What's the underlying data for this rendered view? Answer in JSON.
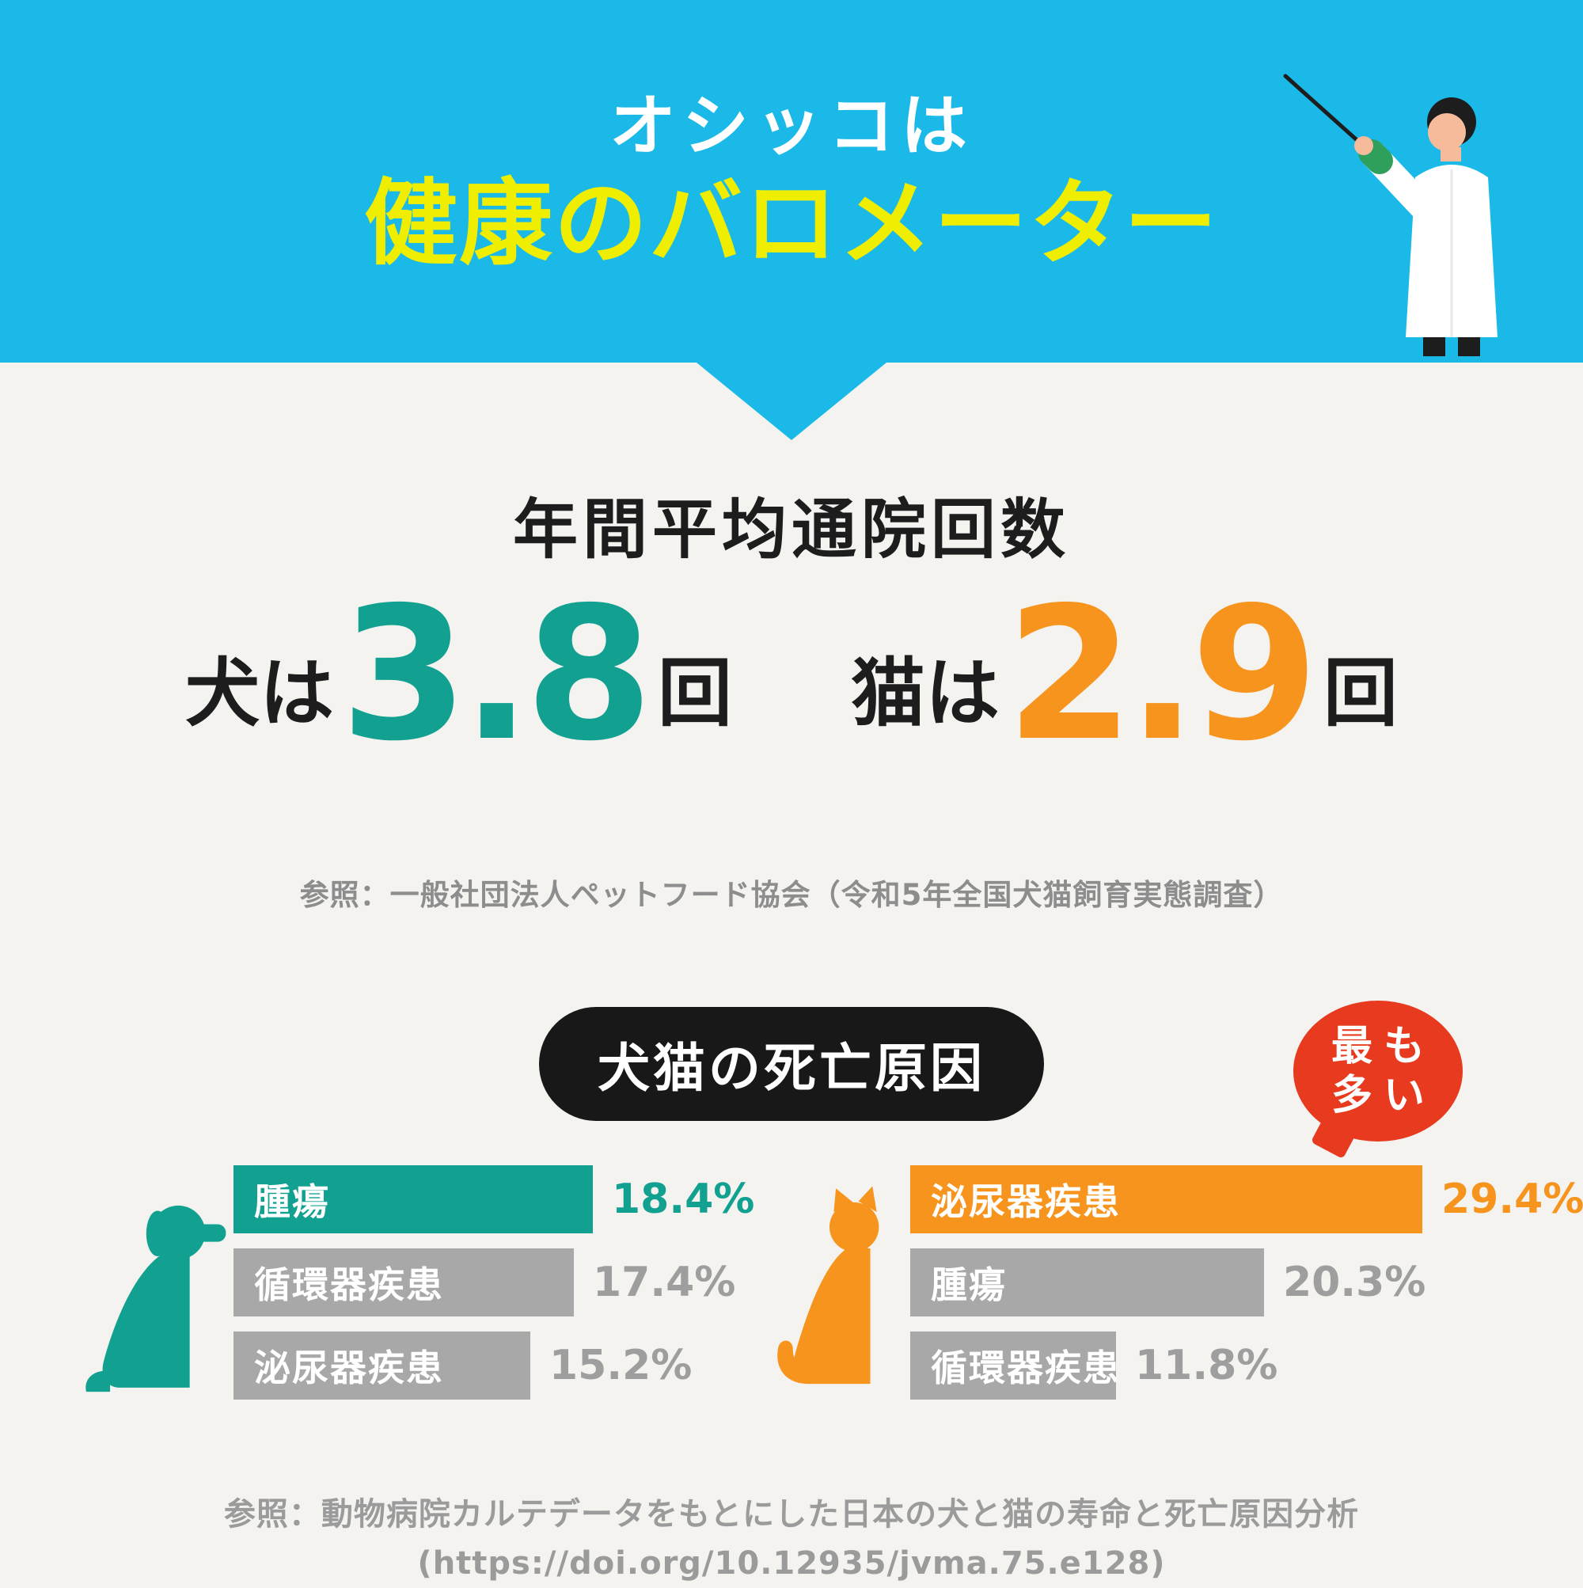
{
  "header": {
    "title_line1": "オシッコは",
    "title_line2": "健康のバロメーター"
  },
  "visits": {
    "heading": "年間平均通院回数",
    "dog_prefix": "犬は",
    "dog_value": "3.8",
    "cat_prefix": "猫は",
    "cat_value": "2.9",
    "unit": "回",
    "source": "参照：一般社団法人ペットフード協会（令和5年全国犬猫飼育実態調査）"
  },
  "causes": {
    "heading": "犬猫の死亡原因",
    "source_line1": "参照：動物病院カルテデータをもとにした日本の犬と猫の寿命と死亡原因分析",
    "source_line2": "(https://doi.org/10.12935/jvma.75.e128)"
  },
  "colors": {
    "header_bg": "#1ab9e8",
    "title_yellow": "#f0ee00",
    "teal": "#12a191",
    "orange": "#f7941d",
    "bar_gray": "#a8a8a8",
    "value_gray": "#9e9e9e",
    "badge_red": "#e73a1e",
    "background": "#f4f3f0",
    "text_dark": "#1d1d1d",
    "source_gray": "#8d8d8d"
  },
  "chart_data": [
    {
      "type": "bar",
      "group": "dog",
      "title": "犬猫の死亡原因（犬）",
      "categories": [
        "腫瘍",
        "循環器疾患",
        "泌尿器疾患"
      ],
      "values": [
        18.4,
        17.4,
        15.2
      ],
      "labels": [
        "18.4%",
        "17.4%",
        "15.2%"
      ],
      "unit": "%",
      "highlight_index": 0,
      "bar_colors": [
        "#12a191",
        "#a8a8a8",
        "#a8a8a8"
      ]
    },
    {
      "type": "bar",
      "group": "cat",
      "title": "犬猫の死亡原因（猫）",
      "categories": [
        "泌尿器疾患",
        "腫瘍",
        "循環器疾患"
      ],
      "values": [
        29.4,
        20.3,
        11.8
      ],
      "labels": [
        "29.4%",
        "20.3%",
        "11.8%"
      ],
      "unit": "%",
      "highlight_index": 0,
      "bar_colors": [
        "#f7941d",
        "#a8a8a8",
        "#a8a8a8"
      ],
      "annotation": "最も多い",
      "annotation_lines": [
        "最も",
        "多い"
      ]
    }
  ]
}
